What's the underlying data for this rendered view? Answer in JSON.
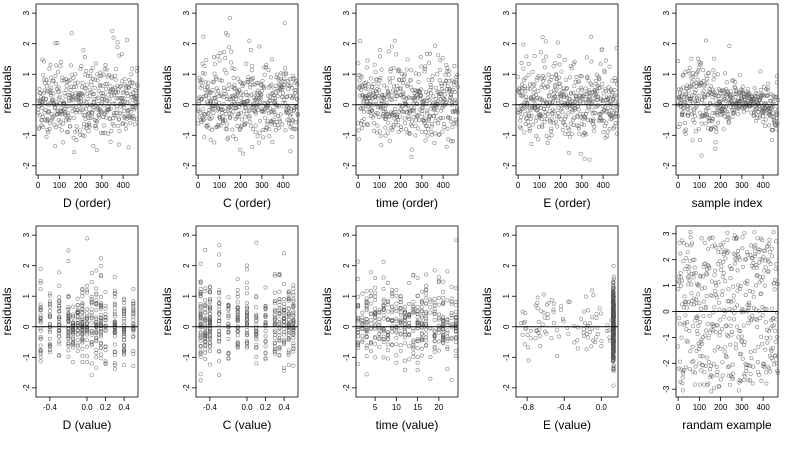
{
  "chart_data": [
    {
      "type": "scatter",
      "title": "",
      "xlabel": "D (order)",
      "ylabel": "residuals",
      "xlim": [
        -10,
        470
      ],
      "ylim": [
        -2.3,
        3.3
      ],
      "xticks": [
        0,
        100,
        200,
        300,
        400
      ],
      "xtick_labels": [
        "0",
        "100",
        "200",
        "300",
        "400"
      ],
      "yticks": [
        -2,
        -1,
        0,
        1,
        2,
        3
      ],
      "ytick_labels": [
        "-2",
        "-1",
        "0",
        "1",
        "2",
        "3"
      ],
      "hline": 0,
      "grid": false,
      "legend": "none",
      "pattern": "index",
      "n": 470,
      "seed": 11
    },
    {
      "type": "scatter",
      "title": "",
      "xlabel": "C (order)",
      "ylabel": "residuals",
      "xlim": [
        -10,
        470
      ],
      "ylim": [
        -2.3,
        3.3
      ],
      "xticks": [
        0,
        100,
        200,
        300,
        400
      ],
      "xtick_labels": [
        "0",
        "100",
        "200",
        "300",
        "400"
      ],
      "yticks": [
        -2,
        -1,
        0,
        1,
        2,
        3
      ],
      "ytick_labels": [
        "-2",
        "-1",
        "0",
        "1",
        "2",
        "3"
      ],
      "hline": 0,
      "grid": false,
      "legend": "none",
      "pattern": "index",
      "n": 470,
      "seed": 23
    },
    {
      "type": "scatter",
      "title": "",
      "xlabel": "time (order)",
      "ylabel": "residuals",
      "xlim": [
        -10,
        470
      ],
      "ylim": [
        -2.3,
        3.3
      ],
      "xticks": [
        0,
        100,
        200,
        300,
        400
      ],
      "xtick_labels": [
        "0",
        "100",
        "200",
        "300",
        "400"
      ],
      "yticks": [
        -2,
        -1,
        0,
        1,
        2,
        3
      ],
      "ytick_labels": [
        "-2",
        "-1",
        "0",
        "1",
        "2",
        "3"
      ],
      "hline": 0,
      "grid": false,
      "legend": "none",
      "pattern": "index",
      "n": 470,
      "seed": 37
    },
    {
      "type": "scatter",
      "title": "",
      "xlabel": "E (order)",
      "ylabel": "residuals",
      "xlim": [
        -10,
        470
      ],
      "ylim": [
        -2.3,
        3.3
      ],
      "xticks": [
        0,
        100,
        200,
        300,
        400
      ],
      "xtick_labels": [
        "0",
        "100",
        "200",
        "300",
        "400"
      ],
      "yticks": [
        -2,
        -1,
        0,
        1,
        2,
        3
      ],
      "ytick_labels": [
        "-2",
        "-1",
        "0",
        "1",
        "2",
        "3"
      ],
      "hline": 0,
      "grid": false,
      "legend": "none",
      "pattern": "index",
      "n": 470,
      "seed": 41
    },
    {
      "type": "scatter",
      "title": "",
      "xlabel": "sample index",
      "ylabel": "residuals",
      "xlim": [
        -10,
        470
      ],
      "ylim": [
        -2.3,
        3.3
      ],
      "xticks": [
        0,
        100,
        200,
        300,
        400
      ],
      "xtick_labels": [
        "0",
        "100",
        "200",
        "300",
        "400"
      ],
      "yticks": [
        -2,
        -1,
        0,
        1,
        2,
        3
      ],
      "ytick_labels": [
        "-2",
        "-1",
        "0",
        "1",
        "2",
        "3"
      ],
      "hline": 0,
      "grid": false,
      "legend": "none",
      "pattern": "wave",
      "n": 470,
      "seed": 53
    },
    {
      "type": "scatter",
      "title": "",
      "xlabel": "D (value)",
      "ylabel": "residuals",
      "xlim": [
        -0.55,
        0.55
      ],
      "ylim": [
        -2.3,
        3.3
      ],
      "xticks": [
        -0.4,
        0.0,
        0.2,
        0.4
      ],
      "xtick_labels": [
        "-0.4",
        "0.0",
        "0.2",
        "0.4"
      ],
      "yticks": [
        -2,
        -1,
        0,
        1,
        2,
        3
      ],
      "ytick_labels": [
        "-2",
        "-1",
        "0",
        "1",
        "2",
        "3"
      ],
      "hline": 0,
      "grid": false,
      "legend": "none",
      "pattern": "columns",
      "columns": [
        -0.5,
        -0.4,
        -0.3,
        -0.2,
        -0.15,
        -0.1,
        -0.05,
        0.0,
        0.05,
        0.1,
        0.15,
        0.2,
        0.3,
        0.4,
        0.5
      ],
      "n": 470,
      "seed": 61
    },
    {
      "type": "scatter",
      "title": "",
      "xlabel": "C (value)",
      "ylabel": "residuals",
      "xlim": [
        -0.55,
        0.55
      ],
      "ylim": [
        -2.3,
        3.3
      ],
      "xticks": [
        -0.4,
        0.0,
        0.2,
        0.4
      ],
      "xtick_labels": [
        "-0.4",
        "0.0",
        "0.2",
        "0.4"
      ],
      "yticks": [
        -2,
        -1,
        0,
        1,
        2,
        3
      ],
      "ytick_labels": [
        "-2",
        "-1",
        "0",
        "1",
        "2",
        "3"
      ],
      "hline": 0,
      "grid": false,
      "legend": "none",
      "pattern": "columns",
      "columns": [
        -0.5,
        -0.45,
        -0.4,
        -0.3,
        -0.2,
        -0.1,
        0.0,
        0.1,
        0.2,
        0.3,
        0.35,
        0.4,
        0.45,
        0.5
      ],
      "n": 470,
      "seed": 67
    },
    {
      "type": "scatter",
      "title": "",
      "xlabel": "time (value)",
      "ylabel": "residuals",
      "xlim": [
        0.5,
        24.5
      ],
      "ylim": [
        -2.3,
        3.3
      ],
      "xticks": [
        5,
        10,
        15,
        20
      ],
      "xtick_labels": [
        "5",
        "10",
        "15",
        "20"
      ],
      "yticks": [
        -2,
        -1,
        0,
        1,
        2,
        3
      ],
      "ytick_labels": [
        "-2",
        "-1",
        "0",
        "1",
        "2",
        "3"
      ],
      "hline": 0,
      "grid": false,
      "legend": "none",
      "pattern": "columns",
      "columns": [
        1,
        2,
        3,
        4,
        5,
        6,
        7,
        8,
        9,
        10,
        11,
        12,
        13,
        14,
        15,
        16,
        17,
        18,
        19,
        20,
        21,
        22,
        23,
        24
      ],
      "n": 470,
      "seed": 71
    },
    {
      "type": "scatter",
      "title": "",
      "xlabel": "E (value)",
      "ylabel": "residuals",
      "xlim": [
        -0.92,
        0.18
      ],
      "ylim": [
        -2.3,
        3.3
      ],
      "xticks": [
        -0.8,
        -0.4,
        0.0
      ],
      "xtick_labels": [
        "-0.8",
        "-0.4",
        "0.0"
      ],
      "yticks": [
        -2,
        -1,
        0,
        1,
        2,
        3
      ],
      "ytick_labels": [
        "-2",
        "-1",
        "0",
        "1",
        "2",
        "3"
      ],
      "hline": 0,
      "grid": false,
      "legend": "none",
      "pattern": "skewed",
      "n": 470,
      "seed": 79
    },
    {
      "type": "scatter",
      "title": "",
      "xlabel": "randam example",
      "ylabel": "residuals",
      "xlim": [
        -10,
        470
      ],
      "ylim": [
        -3.3,
        3.3
      ],
      "xticks": [
        0,
        100,
        200,
        300,
        400
      ],
      "xtick_labels": [
        "0",
        "100",
        "200",
        "300",
        "400"
      ],
      "yticks": [
        -3,
        -2,
        -1,
        0,
        1,
        2,
        3
      ],
      "ytick_labels": [
        "-3",
        "-2",
        "-1",
        "0",
        "1",
        "2",
        "3"
      ],
      "hline": 0,
      "grid": false,
      "legend": "none",
      "pattern": "uniform",
      "n": 470,
      "seed": 83
    }
  ]
}
